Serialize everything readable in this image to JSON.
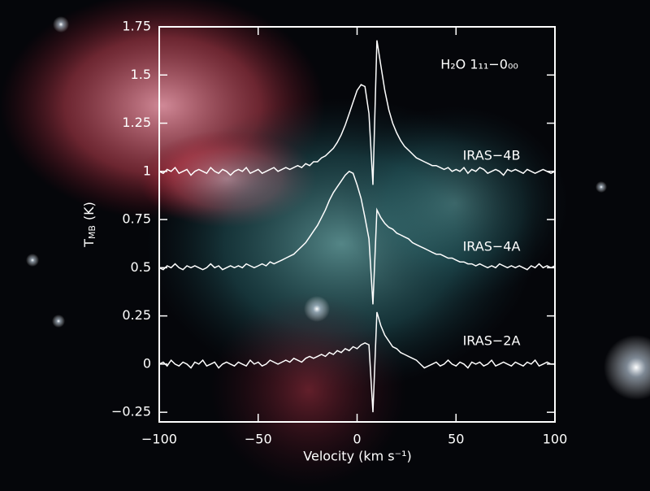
{
  "chart_data": {
    "type": "line",
    "step": true,
    "annotation": "H₂O 1₁₁−0₀₀",
    "xlabel": "Velocity (km s⁻¹)",
    "ylabel": "T",
    "ylabel_sub": "MB",
    "ylabel_unit": "(K)",
    "xlim": [
      -100,
      100
    ],
    "ylim": [
      -0.3,
      1.75
    ],
    "xticks": [
      {
        "value": -100,
        "label": "−100"
      },
      {
        "value": -50,
        "label": "−50"
      },
      0,
      50,
      100
    ],
    "yticks": [
      {
        "value": -0.25,
        "label": "−0.25"
      },
      0,
      0.25,
      0.5,
      0.75,
      1,
      1.25,
      1.5,
      1.75
    ],
    "x": [
      -100,
      -98,
      -96,
      -94,
      -92,
      -90,
      -88,
      -86,
      -84,
      -82,
      -80,
      -78,
      -76,
      -74,
      -72,
      -70,
      -68,
      -66,
      -64,
      -62,
      -60,
      -58,
      -56,
      -54,
      -52,
      -50,
      -48,
      -46,
      -44,
      -42,
      -40,
      -38,
      -36,
      -34,
      -32,
      -30,
      -28,
      -26,
      -24,
      -22,
      -20,
      -18,
      -16,
      -14,
      -12,
      -10,
      -8,
      -6,
      -4,
      -2,
      0,
      2,
      4,
      6,
      8,
      10,
      12,
      14,
      16,
      18,
      20,
      22,
      24,
      26,
      28,
      30,
      32,
      34,
      36,
      38,
      40,
      42,
      44,
      46,
      48,
      50,
      52,
      54,
      56,
      58,
      60,
      62,
      64,
      66,
      68,
      70,
      72,
      74,
      76,
      78,
      80,
      82,
      84,
      86,
      88,
      90,
      92,
      94,
      96,
      98,
      100
    ],
    "series": [
      {
        "name": "IRAS−4B",
        "color": "#ffffff",
        "values": [
          1.0,
          0.99,
          1.01,
          1.0,
          1.02,
          0.99,
          1.0,
          1.01,
          0.98,
          1.0,
          1.01,
          1.0,
          0.99,
          1.02,
          1.0,
          0.99,
          1.01,
          1.0,
          0.98,
          1.0,
          1.01,
          1.0,
          1.02,
          0.99,
          1.0,
          1.01,
          0.99,
          1.0,
          1.01,
          1.02,
          1.0,
          1.01,
          1.02,
          1.01,
          1.02,
          1.03,
          1.02,
          1.04,
          1.03,
          1.05,
          1.05,
          1.07,
          1.08,
          1.1,
          1.12,
          1.15,
          1.19,
          1.24,
          1.3,
          1.36,
          1.42,
          1.45,
          1.44,
          1.3,
          0.93,
          1.68,
          1.55,
          1.42,
          1.32,
          1.25,
          1.2,
          1.16,
          1.13,
          1.11,
          1.09,
          1.07,
          1.06,
          1.05,
          1.04,
          1.03,
          1.03,
          1.02,
          1.01,
          1.02,
          1.0,
          1.01,
          1.0,
          1.02,
          0.99,
          1.01,
          1.0,
          1.02,
          1.01,
          0.99,
          1.0,
          1.01,
          1.0,
          0.98,
          1.01,
          1.0,
          1.01,
          1.0,
          0.99,
          1.01,
          1.0,
          0.99,
          1.0,
          1.01,
          1.0,
          0.99,
          1.0
        ]
      },
      {
        "name": "IRAS−4A",
        "color": "#ffffff",
        "values": [
          0.5,
          0.49,
          0.51,
          0.5,
          0.52,
          0.5,
          0.49,
          0.51,
          0.5,
          0.51,
          0.5,
          0.49,
          0.5,
          0.52,
          0.5,
          0.51,
          0.49,
          0.5,
          0.51,
          0.5,
          0.51,
          0.5,
          0.52,
          0.51,
          0.5,
          0.51,
          0.52,
          0.51,
          0.53,
          0.52,
          0.53,
          0.54,
          0.55,
          0.56,
          0.57,
          0.59,
          0.61,
          0.63,
          0.66,
          0.69,
          0.72,
          0.76,
          0.8,
          0.85,
          0.89,
          0.92,
          0.95,
          0.98,
          1.0,
          0.99,
          0.93,
          0.86,
          0.76,
          0.65,
          0.31,
          0.8,
          0.76,
          0.73,
          0.71,
          0.7,
          0.68,
          0.67,
          0.66,
          0.65,
          0.63,
          0.62,
          0.61,
          0.6,
          0.59,
          0.58,
          0.57,
          0.57,
          0.56,
          0.55,
          0.55,
          0.54,
          0.53,
          0.53,
          0.52,
          0.52,
          0.51,
          0.52,
          0.51,
          0.5,
          0.51,
          0.5,
          0.52,
          0.51,
          0.5,
          0.51,
          0.5,
          0.51,
          0.5,
          0.49,
          0.51,
          0.5,
          0.52,
          0.5,
          0.51,
          0.5,
          0.51
        ]
      },
      {
        "name": "IRAS−2A",
        "color": "#ffffff",
        "values": [
          0.0,
          0.01,
          -0.01,
          0.02,
          0.0,
          -0.01,
          0.01,
          0.0,
          -0.02,
          0.01,
          0.0,
          0.02,
          -0.01,
          0.0,
          0.01,
          -0.02,
          0.0,
          0.01,
          0.0,
          -0.01,
          0.01,
          0.0,
          -0.01,
          0.02,
          0.0,
          0.01,
          -0.01,
          0.0,
          0.02,
          0.01,
          0.0,
          0.01,
          0.02,
          0.01,
          0.03,
          0.02,
          0.01,
          0.03,
          0.04,
          0.03,
          0.04,
          0.05,
          0.04,
          0.06,
          0.05,
          0.07,
          0.06,
          0.08,
          0.07,
          0.09,
          0.08,
          0.1,
          0.11,
          0.1,
          -0.25,
          0.27,
          0.2,
          0.15,
          0.12,
          0.09,
          0.08,
          0.06,
          0.05,
          0.04,
          0.03,
          0.02,
          0.0,
          -0.02,
          -0.01,
          0.0,
          0.01,
          -0.01,
          0.0,
          0.02,
          0.0,
          -0.01,
          0.01,
          0.0,
          -0.02,
          0.01,
          0.0,
          0.01,
          -0.01,
          0.0,
          0.02,
          -0.01,
          0.0,
          0.01,
          0.0,
          -0.01,
          0.01,
          0.0,
          -0.01,
          0.01,
          0.0,
          0.02,
          -0.01,
          0.0,
          0.01,
          0.0,
          0.0
        ]
      }
    ]
  }
}
